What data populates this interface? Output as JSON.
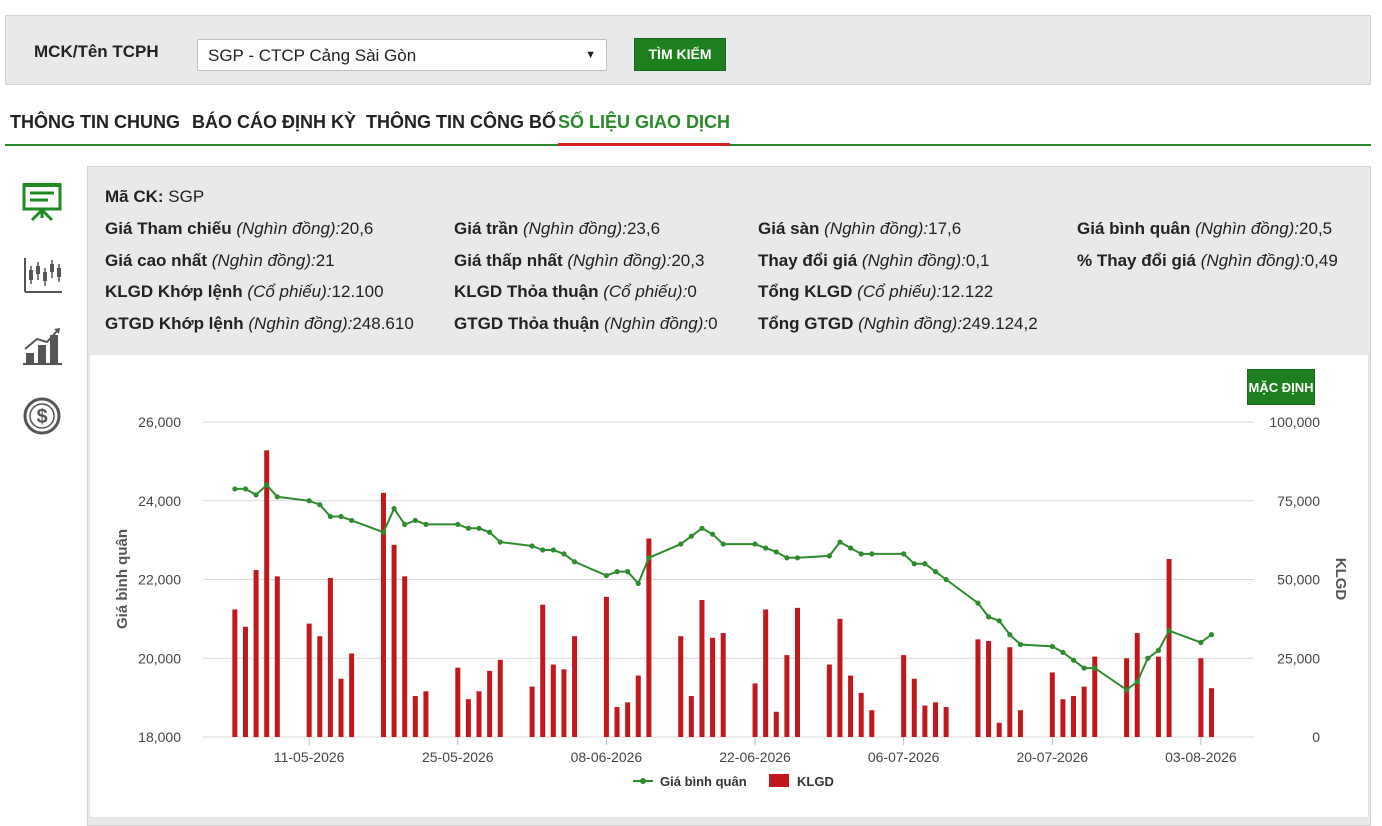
{
  "search": {
    "label": "MCK/Tên TCPH",
    "selected": "SGP - CTCP Cảng Sài Gòn",
    "button": "TÌM KIẾM"
  },
  "tabs": [
    {
      "label": "THÔNG TIN CHUNG",
      "active": false
    },
    {
      "label": "BÁO CÁO ĐỊNH KỲ",
      "active": false
    },
    {
      "label": "THÔNG TIN CÔNG BỐ",
      "active": false
    },
    {
      "label": "SỐ LIỆU GIAO DỊCH",
      "active": true
    }
  ],
  "side_icons": [
    "presentation-board-icon",
    "candlestick-chart-icon",
    "growth-bar-chart-icon",
    "dollar-coin-icon"
  ],
  "info": {
    "ticker_label": "Mã CK:",
    "ticker": "SGP",
    "rows": [
      [
        {
          "label": "Giá Tham chiếu",
          "unit": "(Nghìn đồng):",
          "value": "20,6"
        },
        {
          "label": "Giá trần",
          "unit": "(Nghìn đồng):",
          "value": "23,6"
        },
        {
          "label": "Giá sàn",
          "unit": "(Nghìn đồng):",
          "value": "17,6"
        },
        {
          "label": "Giá bình quân",
          "unit": "(Nghìn đồng):",
          "value": "20,5"
        }
      ],
      [
        {
          "label": "Giá cao nhất",
          "unit": "(Nghìn đồng):",
          "value": "21"
        },
        {
          "label": "Giá thấp nhất",
          "unit": "(Nghìn đồng):",
          "value": "20,3"
        },
        {
          "label": "Thay đổi giá",
          "unit": "(Nghìn đồng):",
          "value": "0,1"
        },
        {
          "label": "% Thay đổi giá",
          "unit": "(Nghìn đồng):",
          "value": "0,49"
        }
      ],
      [
        {
          "label": "KLGD Khớp lệnh",
          "unit": "(Cổ phiếu):",
          "value": "12.100"
        },
        {
          "label": "KLGD Thỏa thuận",
          "unit": "(Cổ phiếu):",
          "value": "0"
        },
        {
          "label": "Tổng KLGD",
          "unit": "(Cổ phiếu):",
          "value": "12.122"
        }
      ],
      [
        {
          "label": "GTGD Khớp lệnh",
          "unit": "(Nghìn đồng):",
          "value": "248.610"
        },
        {
          "label": "GTGD Thỏa thuận",
          "unit": "(Nghìn đồng):",
          "value": "0"
        },
        {
          "label": "Tổng GTGD",
          "unit": "(Nghìn đồng):",
          "value": "249.124,2"
        }
      ]
    ]
  },
  "chart": {
    "default_button": "MẶC ĐỊNH"
  },
  "chart_data": {
    "type": "bar+line",
    "x_tick_labels": [
      "11-05-2026",
      "25-05-2026",
      "08-06-2026",
      "22-06-2026",
      "06-07-2026",
      "20-07-2026",
      "03-08-2026"
    ],
    "ylabel_left": "Giá bình quân",
    "ylabel_right": "KLGD",
    "ylim_left": [
      18000,
      26000
    ],
    "ylim_right": [
      0,
      100000
    ],
    "yticks_left": [
      "18,000",
      "20,000",
      "22,000",
      "24,000",
      "26,000"
    ],
    "yticks_right": [
      "0",
      "25,000",
      "50,000",
      "75,000",
      "100,000"
    ],
    "legend_position": "bottom-center",
    "grid": true,
    "colors": {
      "line": "#2e8b2e",
      "bar": "#c0181c",
      "grid": "#d9d9d9"
    },
    "series": [
      {
        "name": "Giá bình quân",
        "kind": "line",
        "points": [
          [
            "2026-05-04",
            24300
          ],
          [
            "2026-05-05",
            24300
          ],
          [
            "2026-05-06",
            24150
          ],
          [
            "2026-05-07",
            24400
          ],
          [
            "2026-05-08",
            24100
          ],
          [
            "2026-05-11",
            24000
          ],
          [
            "2026-05-12",
            23900
          ],
          [
            "2026-05-13",
            23600
          ],
          [
            "2026-05-14",
            23600
          ],
          [
            "2026-05-15",
            23500
          ],
          [
            "2026-05-18",
            23200
          ],
          [
            "2026-05-19",
            23800
          ],
          [
            "2026-05-20",
            23400
          ],
          [
            "2026-05-21",
            23500
          ],
          [
            "2026-05-22",
            23400
          ],
          [
            "2026-05-25",
            23400
          ],
          [
            "2026-05-26",
            23300
          ],
          [
            "2026-05-27",
            23300
          ],
          [
            "2026-05-28",
            23200
          ],
          [
            "2026-05-29",
            22950
          ],
          [
            "2026-06-01",
            22850
          ],
          [
            "2026-06-02",
            22750
          ],
          [
            "2026-06-03",
            22750
          ],
          [
            "2026-06-04",
            22650
          ],
          [
            "2026-06-05",
            22450
          ],
          [
            "2026-06-08",
            22100
          ],
          [
            "2026-06-09",
            22200
          ],
          [
            "2026-06-10",
            22200
          ],
          [
            "2026-06-11",
            21900
          ],
          [
            "2026-06-12",
            22550
          ],
          [
            "2026-06-15",
            22900
          ],
          [
            "2026-06-16",
            23100
          ],
          [
            "2026-06-17",
            23300
          ],
          [
            "2026-06-18",
            23150
          ],
          [
            "2026-06-19",
            22900
          ],
          [
            "2026-06-22",
            22900
          ],
          [
            "2026-06-23",
            22800
          ],
          [
            "2026-06-24",
            22700
          ],
          [
            "2026-06-25",
            22550
          ],
          [
            "2026-06-26",
            22550
          ],
          [
            "2026-06-29",
            22600
          ],
          [
            "2026-06-30",
            22950
          ],
          [
            "2026-07-01",
            22800
          ],
          [
            "2026-07-02",
            22650
          ],
          [
            "2026-07-03",
            22650
          ],
          [
            "2026-07-06",
            22650
          ],
          [
            "2026-07-07",
            22400
          ],
          [
            "2026-07-08",
            22400
          ],
          [
            "2026-07-09",
            22200
          ],
          [
            "2026-07-10",
            22000
          ],
          [
            "2026-07-13",
            21400
          ],
          [
            "2026-07-14",
            21050
          ],
          [
            "2026-07-15",
            20950
          ],
          [
            "2026-07-16",
            20600
          ],
          [
            "2026-07-17",
            20350
          ],
          [
            "2026-07-20",
            20300
          ],
          [
            "2026-07-21",
            20150
          ],
          [
            "2026-07-22",
            19950
          ],
          [
            "2026-07-23",
            19750
          ],
          [
            "2026-07-24",
            19750
          ],
          [
            "2026-07-27",
            19200
          ],
          [
            "2026-07-28",
            19400
          ],
          [
            "2026-07-29",
            20000
          ],
          [
            "2026-07-30",
            20200
          ],
          [
            "2026-07-31",
            20700
          ],
          [
            "2026-08-03",
            20400
          ],
          [
            "2026-08-04",
            20600
          ]
        ]
      },
      {
        "name": "KLGD",
        "kind": "bar",
        "points": [
          [
            "2026-05-04",
            40500
          ],
          [
            "2026-05-05",
            35000
          ],
          [
            "2026-05-06",
            53000
          ],
          [
            "2026-05-07",
            91000
          ],
          [
            "2026-05-08",
            51000
          ],
          [
            "2026-05-11",
            36000
          ],
          [
            "2026-05-12",
            32000
          ],
          [
            "2026-05-13",
            50500
          ],
          [
            "2026-05-14",
            18500
          ],
          [
            "2026-05-15",
            26500
          ],
          [
            "2026-05-18",
            77500
          ],
          [
            "2026-05-19",
            61000
          ],
          [
            "2026-05-20",
            51000
          ],
          [
            "2026-05-21",
            13000
          ],
          [
            "2026-05-22",
            14500
          ],
          [
            "2026-05-25",
            22000
          ],
          [
            "2026-05-26",
            12000
          ],
          [
            "2026-05-27",
            14500
          ],
          [
            "2026-05-28",
            21000
          ],
          [
            "2026-05-29",
            24500
          ],
          [
            "2026-06-01",
            16000
          ],
          [
            "2026-06-02",
            42000
          ],
          [
            "2026-06-03",
            23000
          ],
          [
            "2026-06-04",
            21500
          ],
          [
            "2026-06-05",
            32000
          ],
          [
            "2026-06-08",
            44500
          ],
          [
            "2026-06-09",
            9500
          ],
          [
            "2026-06-10",
            11000
          ],
          [
            "2026-06-11",
            19500
          ],
          [
            "2026-06-12",
            63000
          ],
          [
            "2026-06-15",
            32000
          ],
          [
            "2026-06-16",
            13000
          ],
          [
            "2026-06-17",
            43500
          ],
          [
            "2026-06-18",
            31500
          ],
          [
            "2026-06-19",
            33000
          ],
          [
            "2026-06-22",
            17000
          ],
          [
            "2026-06-23",
            40500
          ],
          [
            "2026-06-24",
            8000
          ],
          [
            "2026-06-25",
            26000
          ],
          [
            "2026-06-26",
            41000
          ],
          [
            "2026-06-29",
            23000
          ],
          [
            "2026-06-30",
            37500
          ],
          [
            "2026-07-01",
            19500
          ],
          [
            "2026-07-02",
            14000
          ],
          [
            "2026-07-03",
            8500
          ],
          [
            "2026-07-06",
            26000
          ],
          [
            "2026-07-07",
            18500
          ],
          [
            "2026-07-08",
            10000
          ],
          [
            "2026-07-09",
            11000
          ],
          [
            "2026-07-10",
            9500
          ],
          [
            "2026-07-13",
            31000
          ],
          [
            "2026-07-14",
            30500
          ],
          [
            "2026-07-15",
            4500
          ],
          [
            "2026-07-16",
            28500
          ],
          [
            "2026-07-17",
            8500
          ],
          [
            "2026-07-20",
            20500
          ],
          [
            "2026-07-21",
            12000
          ],
          [
            "2026-07-22",
            13000
          ],
          [
            "2026-07-23",
            16000
          ],
          [
            "2026-07-24",
            25500
          ],
          [
            "2026-07-27",
            25000
          ],
          [
            "2026-07-28",
            33000
          ],
          [
            "2026-07-29",
            0
          ],
          [
            "2026-07-30",
            25500
          ],
          [
            "2026-07-31",
            56500
          ],
          [
            "2026-08-03",
            25000
          ],
          [
            "2026-08-04",
            15500
          ]
        ]
      }
    ]
  }
}
